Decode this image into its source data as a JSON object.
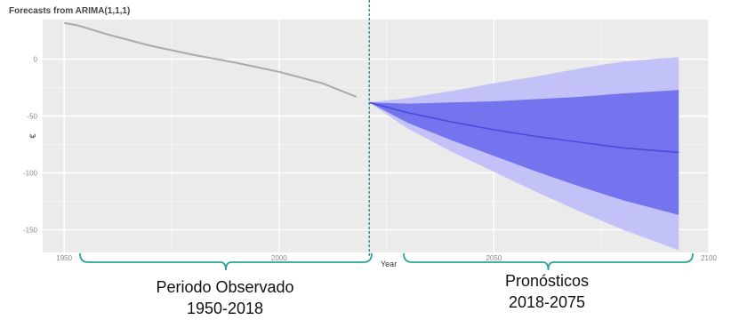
{
  "chart_data": {
    "type": "line",
    "title": "Forecasts from ARIMA(1,1,1)",
    "xlabel": "Year",
    "ylabel": "€",
    "xlim": [
      1945,
      2100
    ],
    "ylim": [
      -170,
      35
    ],
    "x_ticks": [
      1950,
      2000,
      2050,
      2100
    ],
    "x_tick_labels": [
      "1950",
      "2000",
      "2050",
      "2100"
    ],
    "y_ticks": [
      0,
      -50,
      -100,
      -150
    ],
    "y_tick_labels": [
      "0",
      "-50",
      "-100",
      "-150"
    ],
    "grid": true,
    "background": "#ebebeb",
    "observed": {
      "x": [
        1950,
        1953,
        1960,
        1970,
        1980,
        1990,
        2000,
        2010,
        2018
      ],
      "y": [
        32,
        30,
        22,
        12,
        4,
        -3,
        -11,
        -21,
        -33
      ]
    },
    "forecast": {
      "x": [
        2021,
        2030,
        2040,
        2050,
        2060,
        2070,
        2080,
        2093
      ],
      "mean": [
        -38,
        -47,
        -55,
        -62,
        -68,
        -73,
        -78,
        -82
      ],
      "lo80": [
        -38,
        -56,
        -71,
        -85,
        -99,
        -112,
        -124,
        -137
      ],
      "hi80": [
        -38,
        -39,
        -38,
        -37,
        -35,
        -33,
        -30,
        -27
      ],
      "lo95": [
        -38,
        -61,
        -81,
        -99,
        -117,
        -134,
        -150,
        -168
      ],
      "hi95": [
        -38,
        -34,
        -28,
        -21,
        -15,
        -8,
        -2,
        2
      ]
    },
    "divider_x": 2021,
    "colors": {
      "observed": "#aaaaaa",
      "mean": "#4a4ae0",
      "band80": "#7474ee",
      "band95": "#c2c2f8",
      "divider": "#1a8b8b",
      "bracket": "#2aa39a"
    },
    "annotations": [
      {
        "label": "Periodo Observado",
        "years": "1950-2018"
      },
      {
        "label": "Pronósticos",
        "years": "2018-2075"
      }
    ]
  }
}
